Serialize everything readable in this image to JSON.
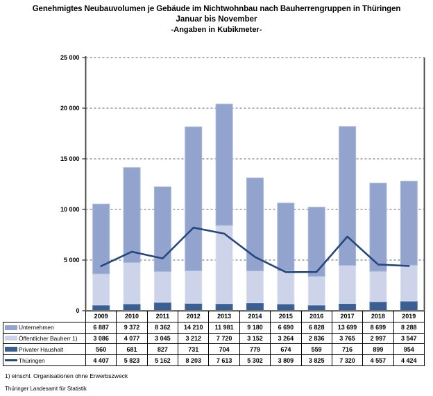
{
  "title": {
    "line1": "Genehmigtes Neubauvolumen je Gebäude im Nichtwohnbau nach Bauherrengruppen in Thüringen",
    "line2": "Januar bis November",
    "line3": "-Angaben in Kubikmeter-"
  },
  "chart_data": {
    "type": "bar",
    "subtype": "stacked-bar-with-line-overlay",
    "categories": [
      "2009",
      "2010",
      "2011",
      "2012",
      "2013",
      "2014",
      "2015",
      "2016",
      "2017",
      "2018",
      "2019"
    ],
    "series": [
      {
        "name": "Unternehmen",
        "kind": "bar",
        "color": "#92A4CD",
        "edge": "#AAB8DA",
        "values": [
          6887,
          9372,
          8362,
          14210,
          11981,
          9180,
          6690,
          6828,
          13699,
          8699,
          8288
        ]
      },
      {
        "name": "Öffentlicher Bauherr 1)",
        "kind": "bar",
        "color": "#CDD3E8",
        "edge": "#DDE2F0",
        "values": [
          3086,
          4077,
          3045,
          3212,
          7720,
          3152,
          3264,
          2836,
          3765,
          2997,
          3547
        ]
      },
      {
        "name": "Privater Haushalt",
        "kind": "bar",
        "color": "#3A5F94",
        "edge": "#537099",
        "values": [
          560,
          681,
          827,
          731,
          704,
          779,
          674,
          559,
          716,
          899,
          954
        ]
      },
      {
        "name": "Thüringen",
        "kind": "line",
        "color": "#25477A",
        "values": [
          4407,
          5823,
          5162,
          8203,
          7613,
          5302,
          3809,
          3825,
          7320,
          4557,
          4424
        ]
      }
    ],
    "stack_order_bottom_to_top": [
      2,
      1,
      0
    ],
    "ylim": [
      0,
      25000
    ],
    "ytick_step": 5000,
    "ytick_labels": [
      "0",
      "5 000",
      "10 000",
      "15 000",
      "20 000",
      "25 000"
    ],
    "grid": true,
    "gridline_color": "#808080",
    "axis_color": "#595959",
    "legend_position": "data-table-left-column",
    "title": "Genehmigtes Neubauvolumen je Gebäude im Nichtwohnbau nach Bauherrengruppen in Thüringen",
    "xlabel": "",
    "ylabel": ""
  },
  "footnotes": {
    "note1": "1) einschl.  Organisationen  ohne Erwerbszweck",
    "source": "Thüringer Landesamt für Statistik"
  }
}
